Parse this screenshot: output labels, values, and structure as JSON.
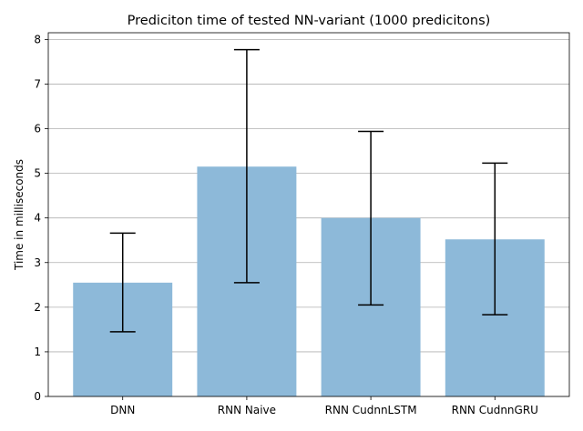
{
  "chart_data": {
    "type": "bar",
    "title": "Prediciton time of tested NN-variant (1000 predicitons)",
    "xlabel": "",
    "ylabel": "Time in milliseconds",
    "categories": [
      "DNN",
      "RNN Naive",
      "RNN CudnnLSTM",
      "RNN CudnnGRU"
    ],
    "values": [
      2.55,
      5.15,
      4.0,
      3.52
    ],
    "error_low": [
      1.45,
      2.55,
      2.05,
      1.83
    ],
    "error_high": [
      3.66,
      7.77,
      5.94,
      5.23
    ],
    "ylim": [
      0,
      8.15
    ],
    "yticks": [
      0,
      1,
      2,
      3,
      4,
      5,
      6,
      7,
      8
    ],
    "grid": "horizontal",
    "bar_color": "#8db9d9",
    "error_color": "#000000"
  }
}
